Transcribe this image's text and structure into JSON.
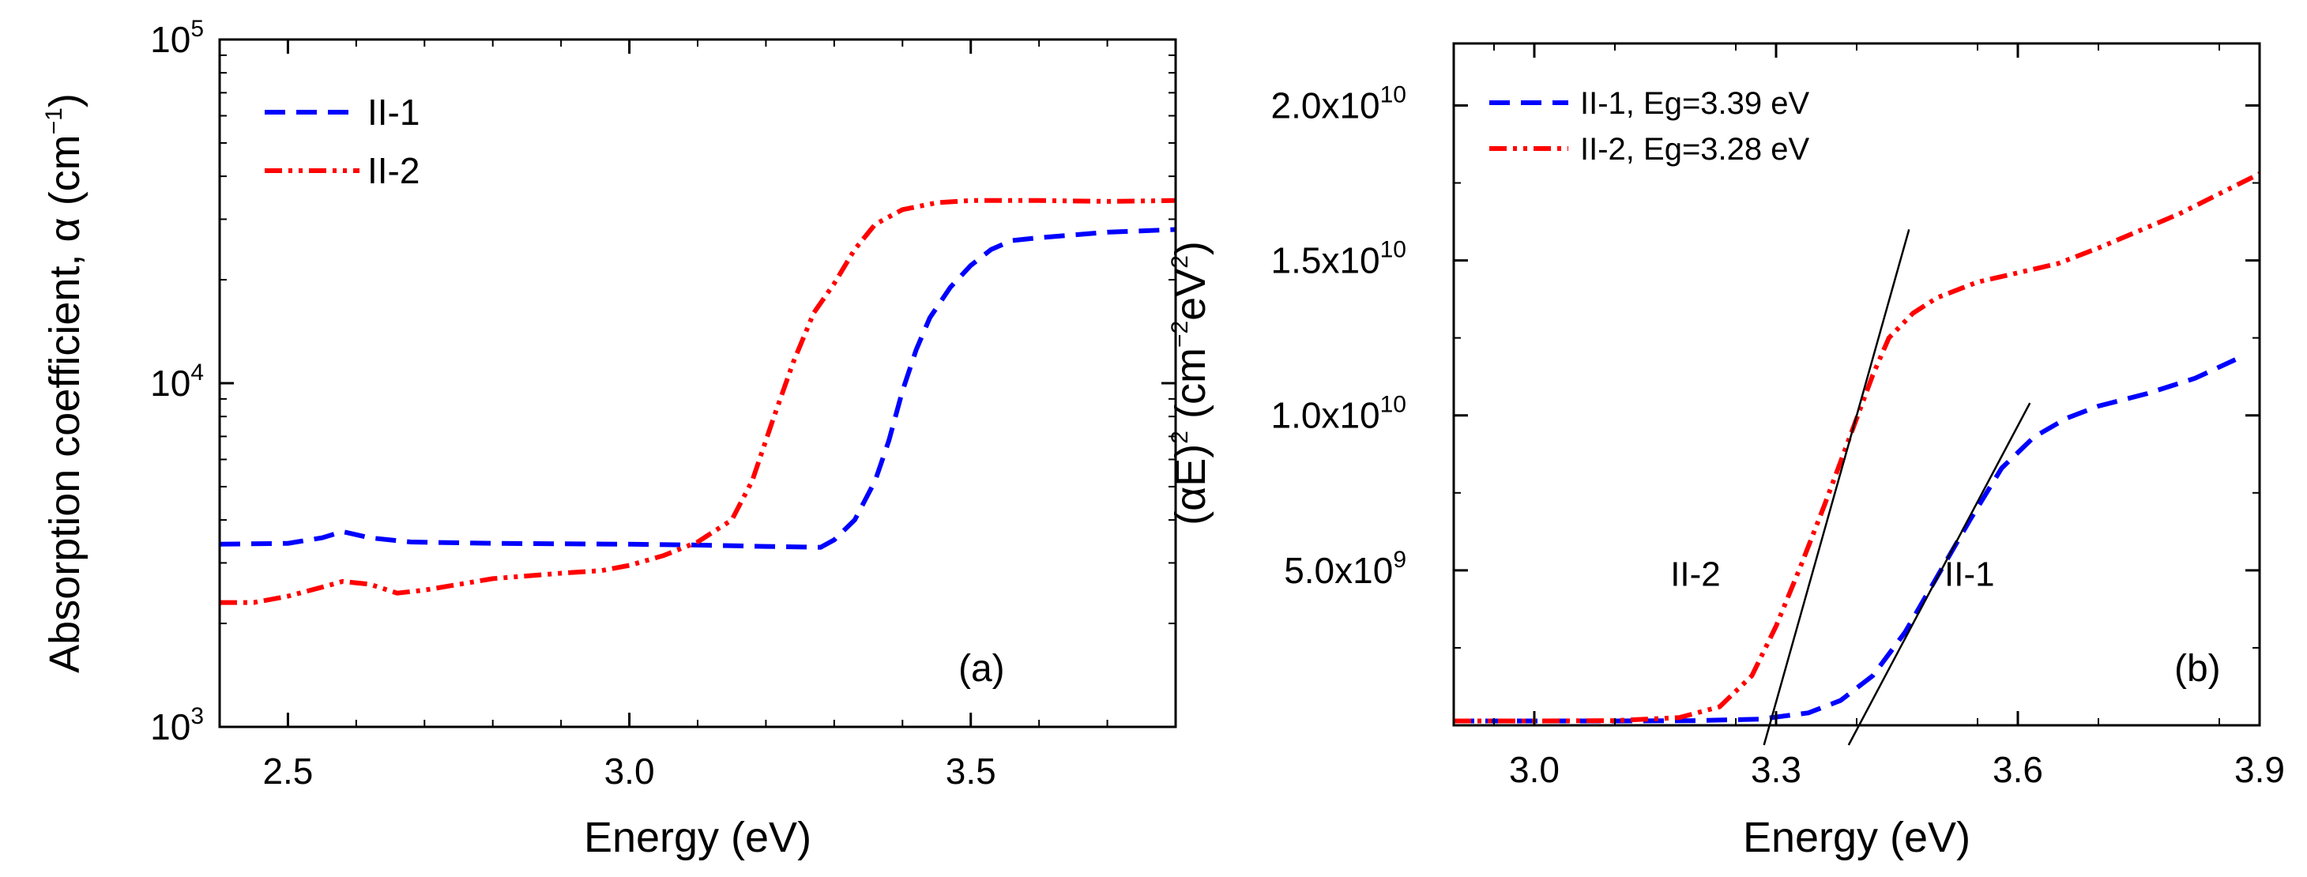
{
  "chart_data": [
    {
      "panel": "(a)",
      "type": "line",
      "yscale": "log",
      "xlabel": "Energy (eV)",
      "ylabel": "Absorption coefficient, α (cm",
      "ylabel_sup": "−1",
      "ylabel_close": ")",
      "xlim": [
        2.4,
        3.8
      ],
      "ylim": [
        1000,
        100000
      ],
      "xticks": [
        2.5,
        3.0,
        3.5
      ],
      "xtick_labels": [
        "2.5",
        "3.0",
        "3.5"
      ],
      "yticks": [
        1000,
        10000,
        100000
      ],
      "ytick_labels": [
        {
          "base": "10",
          "exp": "3"
        },
        {
          "base": "10",
          "exp": "4"
        },
        {
          "base": "10",
          "exp": "5"
        }
      ],
      "legend": "top-left",
      "series": [
        {
          "name": "II-1",
          "color": "#0000ff",
          "dash": "dash",
          "x": [
            2.4,
            2.5,
            2.55,
            2.58,
            2.62,
            2.68,
            2.8,
            3.0,
            3.1,
            3.2,
            3.28,
            3.3,
            3.33,
            3.36,
            3.38,
            3.4,
            3.42,
            3.44,
            3.47,
            3.5,
            3.53,
            3.56,
            3.6,
            3.7,
            3.8
          ],
          "y": [
            3400,
            3420,
            3550,
            3700,
            3550,
            3450,
            3420,
            3400,
            3380,
            3350,
            3330,
            3500,
            4000,
            5200,
            6800,
            9500,
            12500,
            15500,
            19000,
            22000,
            24500,
            26000,
            26500,
            27500,
            28000
          ]
        },
        {
          "name": "II-2",
          "color": "#ff0000",
          "dash": "dashdotdot",
          "x": [
            2.4,
            2.45,
            2.5,
            2.55,
            2.58,
            2.62,
            2.66,
            2.7,
            2.8,
            2.9,
            2.96,
            3.0,
            3.05,
            3.1,
            3.15,
            3.18,
            3.21,
            3.24,
            3.27,
            3.3,
            3.33,
            3.36,
            3.4,
            3.45,
            3.5,
            3.6,
            3.7,
            3.8
          ],
          "y": [
            2300,
            2300,
            2400,
            2550,
            2650,
            2600,
            2450,
            2500,
            2700,
            2800,
            2850,
            2950,
            3150,
            3450,
            4000,
            5200,
            7800,
            11500,
            16000,
            19500,
            24500,
            29000,
            32000,
            33500,
            34000,
            34000,
            33800,
            34000
          ]
        }
      ]
    },
    {
      "panel": "(b)",
      "type": "line",
      "xlabel": "Energy (eV)",
      "ylabel_open": "(αE)",
      "ylabel_sup1": "2",
      "ylabel_mid": " (cm",
      "ylabel_sup2": "−2",
      "ylabel_unit": "eV",
      "ylabel_sup3": "2",
      "ylabel_close": ")",
      "xlim": [
        2.9,
        3.9
      ],
      "ylim": [
        0,
        22000000000.0
      ],
      "xticks": [
        3.0,
        3.3,
        3.6,
        3.9
      ],
      "xtick_labels": [
        "3.0",
        "3.3",
        "3.6",
        "3.9"
      ],
      "yticks": [
        5000000000.0,
        10000000000.0,
        15000000000.0,
        20000000000.0
      ],
      "ytick_labels": [
        {
          "mant": "5.0x10",
          "exp": "9"
        },
        {
          "mant": "1.0x10",
          "exp": "10"
        },
        {
          "mant": "1.5x10",
          "exp": "10"
        },
        {
          "mant": "2.0x10",
          "exp": "10"
        }
      ],
      "legend": "top-left",
      "series": [
        {
          "name": "II-1, Eg=3.39 eV",
          "color": "#0000ff",
          "dash": "dash",
          "x": [
            2.9,
            3.0,
            3.1,
            3.2,
            3.28,
            3.34,
            3.38,
            3.42,
            3.46,
            3.5,
            3.54,
            3.58,
            3.62,
            3.66,
            3.7,
            3.76,
            3.82,
            3.87
          ],
          "y": [
            140000000.0,
            140000000.0,
            140000000.0,
            150000000.0,
            200000000.0,
            400000000.0,
            800000000.0,
            1600000000.0,
            3000000000.0,
            4800000000.0,
            6600000000.0,
            8300000000.0,
            9300000000.0,
            9900000000.0,
            10300000000.0,
            10700000000.0,
            11200000000.0,
            11800000000.0
          ]
        },
        {
          "name": "II-2, Eg=3.28 eV",
          "color": "#ff0000",
          "dash": "dashdotdot",
          "x": [
            2.9,
            3.0,
            3.1,
            3.18,
            3.23,
            3.27,
            3.3,
            3.33,
            3.36,
            3.39,
            3.42,
            3.44,
            3.47,
            3.5,
            3.55,
            3.6,
            3.65,
            3.7,
            3.8,
            3.9
          ],
          "y": [
            140000000.0,
            140000000.0,
            150000000.0,
            250000000.0,
            600000000.0,
            1600000000.0,
            3200000000.0,
            5100000000.0,
            7100000000.0,
            9200000000.0,
            11300000000.0,
            12500000000.0,
            13300000000.0,
            13800000000.0,
            14300000000.0,
            14600000000.0,
            14900000000.0,
            15400000000.0,
            16500000000.0,
            17800000000.0
          ]
        }
      ],
      "fit_lines": [
        {
          "name": "II-2",
          "x": [
            3.285,
            3.465
          ],
          "y": [
            0,
            16000000000.0
          ]
        },
        {
          "name": "II-1",
          "x": [
            3.39,
            3.615
          ],
          "y": [
            0,
            10400000000.0
          ]
        }
      ],
      "annotations": [
        {
          "text": "II-2",
          "x": 3.2,
          "y": 4500000000.0
        },
        {
          "text": "II-1",
          "x": 3.54,
          "y": 4500000000.0
        }
      ]
    }
  ]
}
